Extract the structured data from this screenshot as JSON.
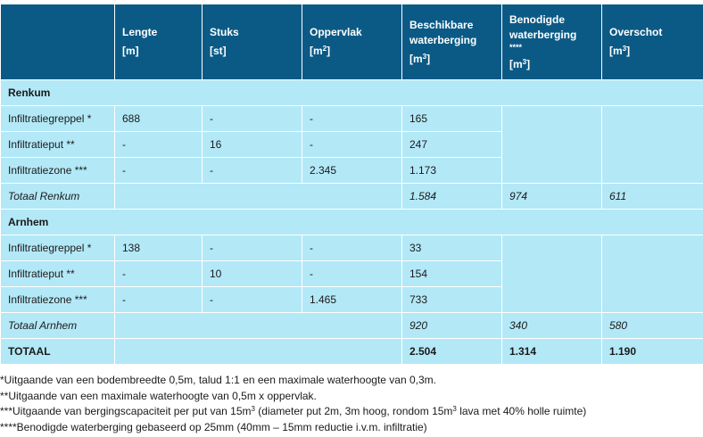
{
  "header": {
    "col_label": "",
    "lengte": "Lengte",
    "lengte_unit": "[m]",
    "stuks": "Stuks",
    "stuks_unit": "[st]",
    "oppervlak": "Oppervlak",
    "oppervlak_unit": "[m",
    "beschikbaar_line1": "Beschikbare",
    "beschikbaar_line2": "waterberging",
    "beschikbaar_unit": "[m",
    "benodigd_line1": "Benodigde",
    "benodigd_line2": "waterberging",
    "benodigd_marker": "****",
    "benodigd_unit": "[m",
    "overschot": "Overschot",
    "overschot_unit": "[m",
    "sup2": "2",
    "sup3": "3",
    "bracket_close": "]"
  },
  "groups": [
    {
      "name": "Renkum",
      "rows": [
        {
          "label": "Infiltratiegreppel *",
          "lengte": "688",
          "stuks": "-",
          "oppervlak": "-",
          "beschikbaar": "165"
        },
        {
          "label": "Infiltratieput **",
          "lengte": "-",
          "stuks": "16",
          "oppervlak": "-",
          "beschikbaar": "247"
        },
        {
          "label": "Infiltratiezone ***",
          "lengte": "-",
          "stuks": "-",
          "oppervlak": "2.345",
          "beschikbaar": "1.173"
        }
      ],
      "subtotal": {
        "label": "Totaal Renkum",
        "beschikbaar": "1.584",
        "benodigd": "974",
        "overschot": "611"
      }
    },
    {
      "name": "Arnhem",
      "rows": [
        {
          "label": "Infiltratiegreppel *",
          "lengte": "138",
          "stuks": "-",
          "oppervlak": "-",
          "beschikbaar": "33"
        },
        {
          "label": "Infiltratieput **",
          "lengte": "-",
          "stuks": "10",
          "oppervlak": "-",
          "beschikbaar": "154"
        },
        {
          "label": "Infiltratiezone ***",
          "lengte": "-",
          "stuks": "-",
          "oppervlak": "1.465",
          "beschikbaar": "733"
        }
      ],
      "subtotal": {
        "label": "Totaal Arnhem",
        "beschikbaar": "920",
        "benodigd": "340",
        "overschot": "580"
      }
    }
  ],
  "total": {
    "label": "TOTAAL",
    "beschikbaar": "2.504",
    "benodigd": "1.314",
    "overschot": "1.190"
  },
  "notes": {
    "n1": "*Uitgaande van een bodembreedte 0,5m, talud 1:1 en een maximale waterhoogte van 0,3m.",
    "n2": "**Uitgaande van een maximale waterhoogte van 0,5m x oppervlak.",
    "n3a": "***Uitgaande van bergingscapaciteit per put van 15m",
    "n3b": " (diameter put 2m, 3m hoog, rondom 15m",
    "n3c": " lava met 40% holle ruimte)",
    "n4": "****Benodigde waterberging gebaseerd op 25mm (40mm – 15mm reductie i.v.m. infiltratie)"
  },
  "colors": {
    "header_bg": "#0b5a86",
    "cell_bg": "#b3e8f7"
  }
}
